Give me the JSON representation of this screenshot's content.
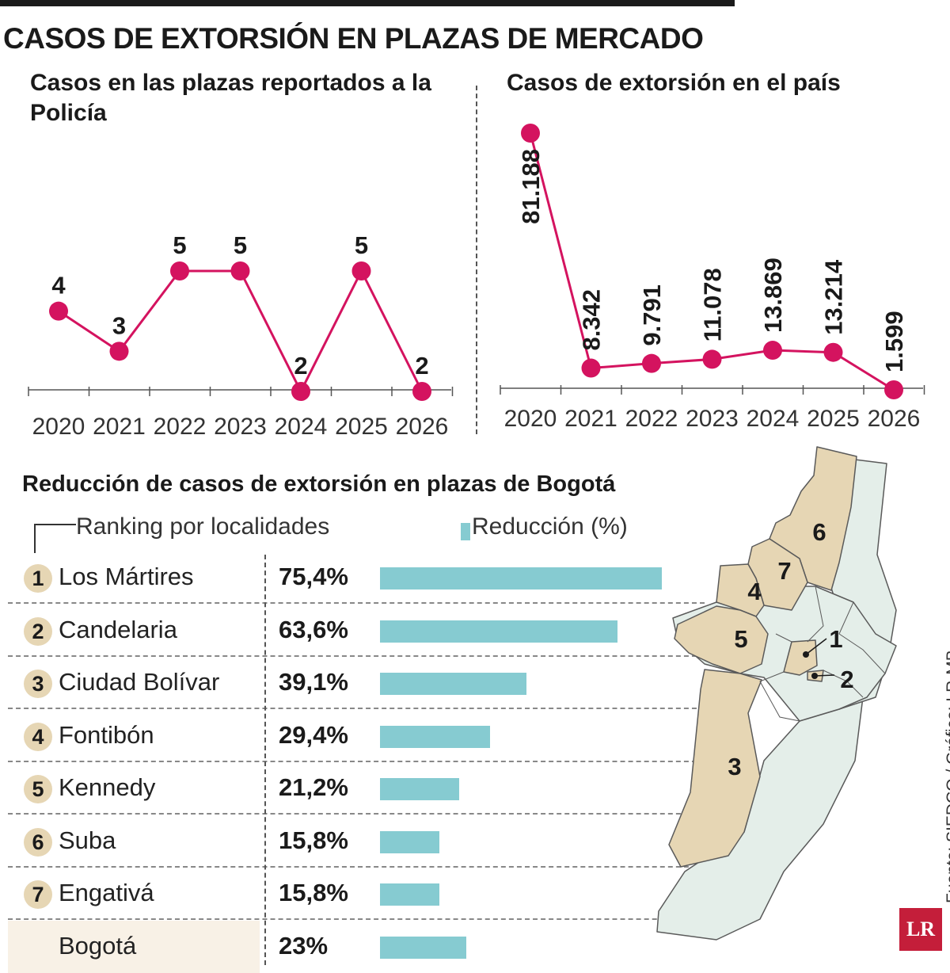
{
  "title": "CASOS DE EXTORSIÓN EN PLAZAS DE MERCADO",
  "accent_color": "#d4135f",
  "bar_color": "#86cbd1",
  "region_color": "#e6d6b4",
  "map_base_color": "#e4eee9",
  "chart_data": [
    {
      "type": "line",
      "title": "Casos en las plazas reportados a la Policía",
      "x": [
        "2020",
        "2021",
        "2022",
        "2023",
        "2024",
        "2025",
        "2026"
      ],
      "values": [
        4,
        3,
        5,
        5,
        2,
        5,
        2
      ],
      "value_labels": [
        "4",
        "3",
        "5",
        "5",
        "2",
        "5",
        "2"
      ],
      "ylim": [
        2,
        5
      ],
      "grid": false
    },
    {
      "type": "line",
      "title": "Casos de extorsión en el país",
      "x": [
        "2020",
        "2021",
        "2022",
        "2023",
        "2024",
        "2025",
        "2026"
      ],
      "values": [
        81188,
        8342,
        9791,
        11078,
        13869,
        13214,
        1599
      ],
      "value_labels": [
        "81.188",
        "8.342",
        "9.791",
        "11.078",
        "13.869",
        "13.214",
        "1.599"
      ],
      "ylim": [
        1599,
        81188
      ],
      "grid": false
    },
    {
      "type": "bar",
      "title": "Reducción de casos de extorsión en plazas de Bogotá",
      "legend_ranking": "Ranking por localidades",
      "legend_series": "Reducción (%)",
      "categories": [
        "Los Mártires",
        "Candelaria",
        "Ciudad Bolívar",
        "Fontibón",
        "Kennedy",
        "Suba",
        "Engativá",
        "Bogotá"
      ],
      "ranks": [
        "1",
        "2",
        "3",
        "4",
        "5",
        "6",
        "7",
        ""
      ],
      "values": [
        75.4,
        63.6,
        39.1,
        29.4,
        21.2,
        15.8,
        15.8,
        23
      ],
      "value_labels": [
        "75,4%",
        "63,6%",
        "39,1%",
        "29,4%",
        "21,2%",
        "15,8%",
        "15,8%",
        "23%"
      ],
      "orientation": "horizontal"
    }
  ],
  "map": {
    "labels": [
      "1",
      "2",
      "3",
      "4",
      "5",
      "6",
      "7"
    ]
  },
  "source": "Fuente: SIEDCO / Gráfico: LR-MB",
  "logo_text": "LR"
}
